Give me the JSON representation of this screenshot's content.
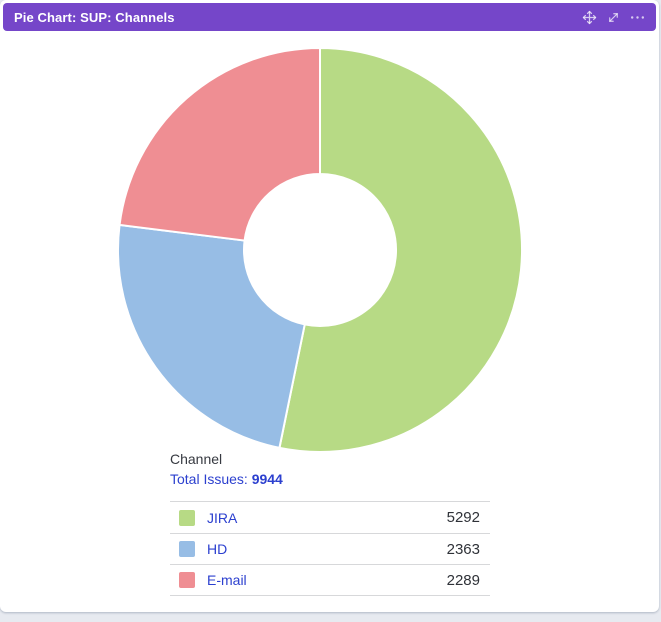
{
  "header": {
    "title": "Pie Chart: SUP: Channels",
    "background_color": "#7546c9",
    "icons": [
      {
        "name": "move-icon"
      },
      {
        "name": "expand-icon"
      },
      {
        "name": "more-options-icon"
      }
    ]
  },
  "summary": {
    "channel_label": "Channel",
    "total_label": "Total Issues: ",
    "total_value": "9944"
  },
  "chart_data": {
    "type": "pie",
    "subtype": "donut",
    "title": "Pie Chart: SUP: Channels",
    "categories": [
      "JIRA",
      "HD",
      "E-mail"
    ],
    "values": [
      5292,
      2363,
      2289
    ],
    "colors": [
      "#b7da85",
      "#97bde5",
      "#ef8e93"
    ],
    "total": 9944,
    "start_angle": "top",
    "direction": "clockwise",
    "legend_position": "bottom",
    "slice_separator_color": "#ffffff"
  }
}
